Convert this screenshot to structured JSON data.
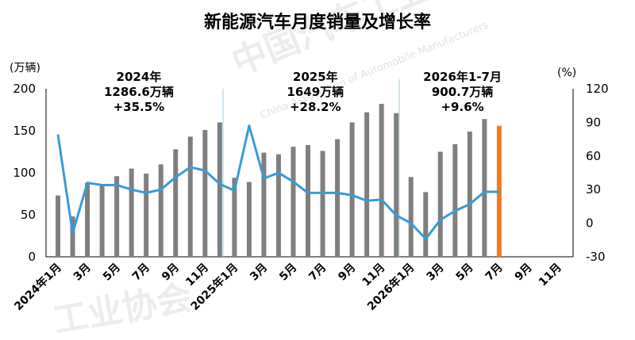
{
  "chart_data": {
    "type": "bar",
    "title": "新能源汽车月度销量及增长率",
    "y_left_unit": "(万辆)",
    "y_right_unit": "(%)",
    "ylim_left": [
      0,
      200
    ],
    "ylim_right": [
      -30,
      120
    ],
    "yticks_left": [
      "0",
      "50",
      "100",
      "150",
      "200"
    ],
    "yticks_right": [
      "-30",
      "0",
      "30",
      "60",
      "90",
      "120"
    ],
    "xtick_labels": [
      "2024年1月",
      "3月",
      "5月",
      "7月",
      "9月",
      "11月",
      "2025年1月",
      "3月",
      "5月",
      "7月",
      "9月",
      "11月",
      "2026年1月",
      "3月",
      "5月",
      "7月",
      "9月",
      "11月"
    ],
    "months_per_year": 12,
    "year_annotations": [
      {
        "year": "2024年",
        "total": "1286.6万辆",
        "growth": "+35.5%"
      },
      {
        "year": "2025年",
        "total": "1649万辆",
        "growth": "+28.2%"
      },
      {
        "year": "2026年1-7月",
        "total": "900.7万辆",
        "growth": "+9.6%"
      }
    ],
    "series": [
      {
        "kind": "bar",
        "axis": "left",
        "values": [
          73,
          48,
          88,
          85,
          96,
          105,
          99,
          110,
          128,
          143,
          151,
          160,
          94,
          89,
          124,
          122,
          131,
          133,
          126,
          140,
          160,
          172,
          182,
          171,
          95,
          77,
          125,
          134,
          149,
          164,
          156
        ],
        "color": "#7f7f7f",
        "highlight_index": 30,
        "highlight_color": "#f07c21"
      },
      {
        "kind": "line",
        "axis": "right",
        "values": [
          79,
          -9,
          36,
          34,
          34,
          30,
          27,
          30,
          41,
          50,
          47,
          35,
          29,
          87,
          40,
          45,
          37,
          27,
          27,
          27,
          25,
          20,
          21,
          7,
          0,
          -14,
          3,
          11,
          17,
          28,
          28
        ],
        "color": "#3a9bd5"
      }
    ],
    "grid": false
  },
  "watermark": {
    "main": "中国汽车工业协会",
    "sub": "China Association of Automobile Manufacturers",
    "bottom": "工业协会"
  }
}
